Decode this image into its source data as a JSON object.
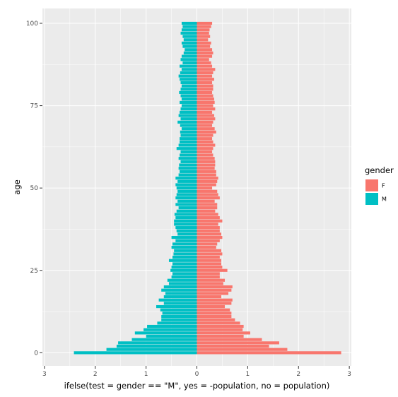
{
  "chart_data": {
    "type": "bar",
    "orientation": "horizontal",
    "xlabel": "ifelse(test = gender == \"M\", yes = -population, no = population)",
    "ylabel": "age",
    "xlim": [
      -3.04,
      3.04
    ],
    "ylim": [
      -4,
      104.5
    ],
    "x_ticks": [
      -3,
      -2,
      -1,
      0,
      1,
      2,
      3
    ],
    "x_tick_labels": [
      "3",
      "2",
      "1",
      "0",
      "1",
      "2",
      "3"
    ],
    "y_ticks": [
      0,
      25,
      50,
      75,
      100
    ],
    "y_tick_labels": [
      "0",
      "25",
      "50",
      "75",
      "100"
    ],
    "grid": true,
    "panel_background": "#ebebeb",
    "legend": {
      "title": "gender",
      "placement": "right",
      "entries": [
        {
          "label": "F",
          "color": "#f8766d"
        },
        {
          "label": "M",
          "color": "#00bfc4"
        }
      ]
    },
    "ages": [
      0,
      1,
      2,
      3,
      4,
      5,
      6,
      7,
      8,
      9,
      10,
      11,
      12,
      13,
      14,
      15,
      16,
      17,
      18,
      19,
      20,
      21,
      22,
      23,
      24,
      25,
      26,
      27,
      28,
      29,
      30,
      31,
      32,
      33,
      34,
      35,
      36,
      37,
      38,
      39,
      40,
      41,
      42,
      43,
      44,
      45,
      46,
      47,
      48,
      49,
      50,
      51,
      52,
      53,
      54,
      55,
      56,
      57,
      58,
      59,
      60,
      61,
      62,
      63,
      64,
      65,
      66,
      67,
      68,
      69,
      70,
      71,
      72,
      73,
      74,
      75,
      76,
      77,
      78,
      79,
      80,
      81,
      82,
      83,
      84,
      85,
      86,
      87,
      88,
      89,
      90,
      91,
      92,
      93,
      94,
      95,
      96,
      97,
      98,
      99,
      100
    ],
    "series": [
      {
        "name": "F",
        "color": "#f8766d",
        "values": [
          2.84,
          1.78,
          1.42,
          1.62,
          1.28,
          0.92,
          1.05,
          0.9,
          0.92,
          0.85,
          0.75,
          0.68,
          0.68,
          0.65,
          0.55,
          0.68,
          0.7,
          0.48,
          0.62,
          0.68,
          0.7,
          0.52,
          0.55,
          0.45,
          0.45,
          0.6,
          0.5,
          0.48,
          0.48,
          0.45,
          0.5,
          0.48,
          0.38,
          0.4,
          0.45,
          0.5,
          0.48,
          0.45,
          0.45,
          0.42,
          0.5,
          0.45,
          0.42,
          0.36,
          0.4,
          0.4,
          0.35,
          0.45,
          0.42,
          0.4,
          0.3,
          0.38,
          0.4,
          0.42,
          0.38,
          0.38,
          0.35,
          0.36,
          0.36,
          0.35,
          0.32,
          0.3,
          0.32,
          0.36,
          0.32,
          0.3,
          0.32,
          0.38,
          0.35,
          0.3,
          0.32,
          0.36,
          0.34,
          0.3,
          0.36,
          0.32,
          0.35,
          0.34,
          0.32,
          0.3,
          0.32,
          0.32,
          0.3,
          0.34,
          0.3,
          0.32,
          0.36,
          0.3,
          0.28,
          0.24,
          0.3,
          0.32,
          0.3,
          0.26,
          0.28,
          0.22,
          0.26,
          0.24,
          0.25,
          0.28,
          0.3
        ]
      },
      {
        "name": "M",
        "color": "#00bfc4",
        "values": [
          2.42,
          1.78,
          1.58,
          1.55,
          1.28,
          1.0,
          1.22,
          1.05,
          0.98,
          0.78,
          0.7,
          0.7,
          0.68,
          0.72,
          0.8,
          0.65,
          0.75,
          0.65,
          0.62,
          0.7,
          0.65,
          0.55,
          0.58,
          0.5,
          0.48,
          0.52,
          0.5,
          0.48,
          0.55,
          0.48,
          0.46,
          0.45,
          0.5,
          0.48,
          0.42,
          0.5,
          0.38,
          0.4,
          0.42,
          0.45,
          0.45,
          0.42,
          0.44,
          0.4,
          0.36,
          0.42,
          0.38,
          0.42,
          0.4,
          0.38,
          0.4,
          0.42,
          0.38,
          0.42,
          0.36,
          0.34,
          0.36,
          0.35,
          0.32,
          0.36,
          0.34,
          0.32,
          0.4,
          0.36,
          0.34,
          0.34,
          0.32,
          0.33,
          0.3,
          0.33,
          0.38,
          0.32,
          0.36,
          0.34,
          0.32,
          0.3,
          0.34,
          0.3,
          0.32,
          0.35,
          0.32,
          0.3,
          0.32,
          0.34,
          0.36,
          0.33,
          0.3,
          0.34,
          0.28,
          0.32,
          0.3,
          0.26,
          0.24,
          0.28,
          0.3,
          0.26,
          0.28,
          0.32,
          0.3,
          0.28,
          0.3
        ]
      }
    ]
  }
}
